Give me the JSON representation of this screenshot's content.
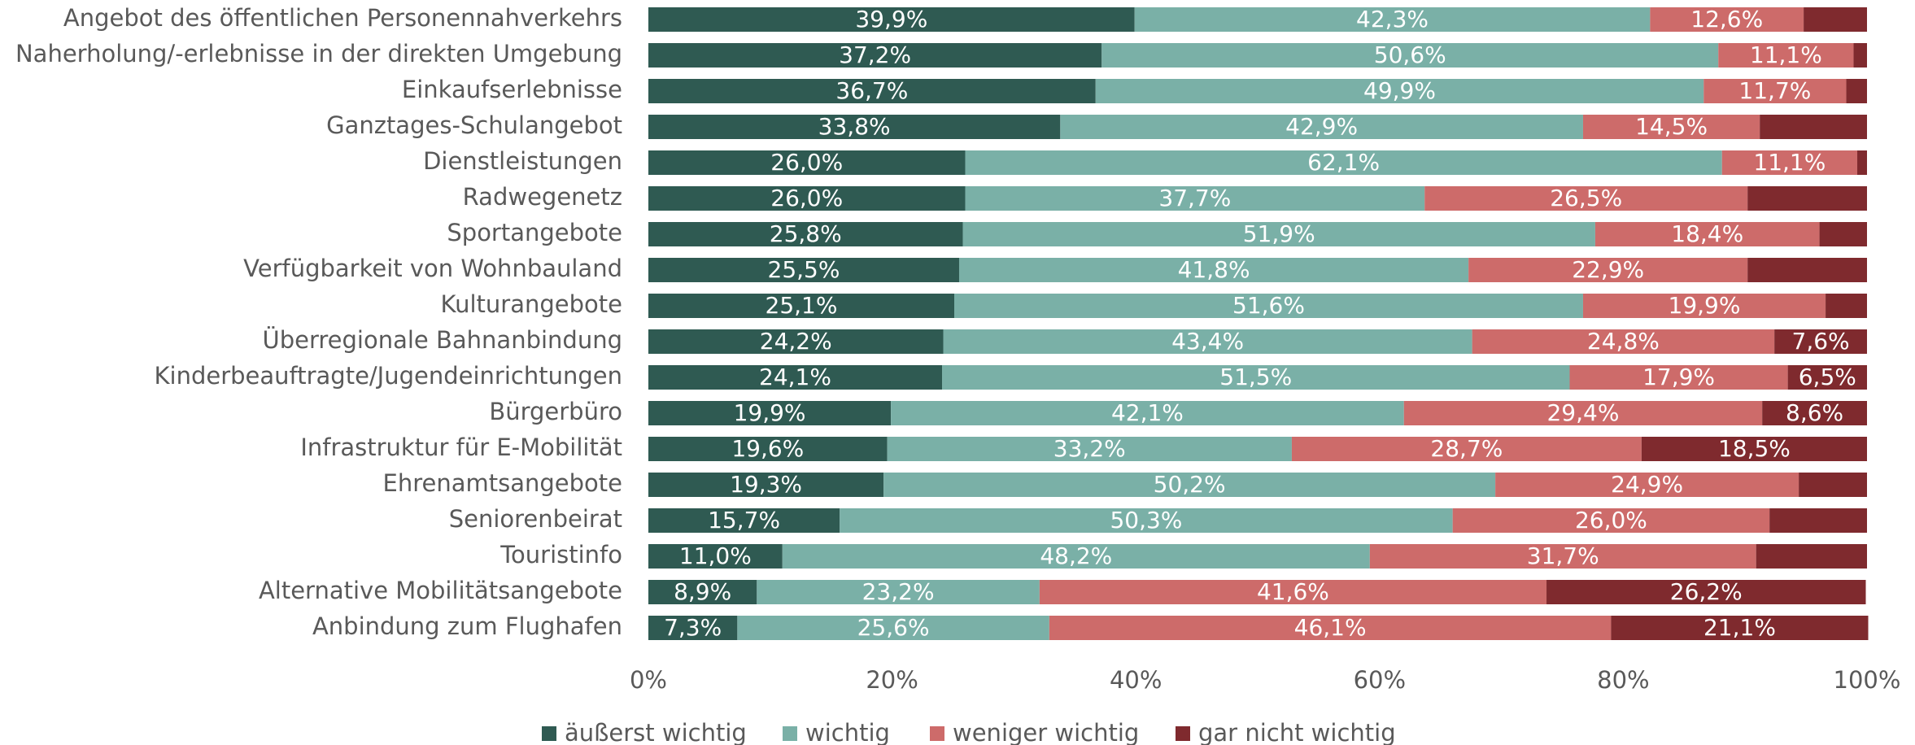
{
  "chart_data": {
    "type": "stacked_bar_horizontal",
    "categories": [
      "Angebot des öffentlichen Personennahverkehrs",
      "Naherholung/-erlebnisse in der direkten Umgebung",
      "Einkaufserlebnisse",
      "Ganztages-Schulangebot",
      "Dienstleistungen",
      "Radwegenetz",
      "Sportangebote",
      "Verfügbarkeit von Wohnbauland",
      "Kulturangebote",
      "Überregionale Bahnanbindung",
      "Kinderbeauftragte/Jugendeinrichtungen",
      "Bürgerbüro",
      "Infrastruktur für E-Mobilität",
      "Ehrenamtsangebote",
      "Seniorenbeirat",
      "Touristinfo",
      "Alternative Mobilitätsangebote",
      "Anbindung zum Flughafen"
    ],
    "series": [
      {
        "name": "äußerst wichtig",
        "color": "#2f5a52",
        "values": [
          39.9,
          37.2,
          36.7,
          33.8,
          26.0,
          26.0,
          25.8,
          25.5,
          25.1,
          24.2,
          24.1,
          19.9,
          19.6,
          19.3,
          15.7,
          11.0,
          8.9,
          7.3
        ],
        "value_labels": [
          "39,9%",
          "37,2%",
          "36,7%",
          "33,8%",
          "26,0%",
          "26,0%",
          "25,8%",
          "25,5%",
          "25,1%",
          "24,2%",
          "24,1%",
          "19,9%",
          "19,6%",
          "19,3%",
          "15,7%",
          "11,0%",
          "8,9%",
          "7,3%"
        ]
      },
      {
        "name": "wichtig",
        "color": "#7ab0a7",
        "values": [
          42.3,
          50.6,
          49.9,
          42.9,
          62.1,
          37.7,
          51.9,
          41.8,
          51.6,
          43.4,
          51.5,
          42.1,
          33.2,
          50.2,
          50.3,
          48.2,
          23.2,
          25.6
        ],
        "value_labels": [
          "42,3%",
          "50,6%",
          "49,9%",
          "42,9%",
          "62,1%",
          "37,7%",
          "51,9%",
          "41,8%",
          "51,6%",
          "43,4%",
          "51,5%",
          "42,1%",
          "33,2%",
          "50,2%",
          "50,3%",
          "48,2%",
          "23,2%",
          "25,6%"
        ]
      },
      {
        "name": "weniger wichtig",
        "color": "#cd6b6a",
        "values": [
          12.6,
          11.1,
          11.7,
          14.5,
          11.1,
          26.5,
          18.4,
          22.9,
          19.9,
          24.8,
          17.9,
          29.4,
          28.7,
          24.9,
          26.0,
          31.7,
          41.6,
          46.1
        ],
        "value_labels": [
          "12,6%",
          "11,1%",
          "11,7%",
          "14,5%",
          "11,1%",
          "26,5%",
          "18,4%",
          "22,9%",
          "19,9%",
          "24,8%",
          "17,9%",
          "29,4%",
          "28,7%",
          "24,9%",
          "26,0%",
          "31,7%",
          "41,6%",
          "46,1%"
        ]
      },
      {
        "name": "gar nicht wichtig",
        "color": "#7f2a2e",
        "values": [
          5.2,
          1.1,
          1.7,
          8.8,
          0.8,
          9.8,
          3.9,
          9.8,
          3.4,
          7.6,
          6.5,
          8.6,
          18.5,
          5.6,
          8.0,
          9.1,
          26.2,
          21.1
        ],
        "value_labels": [
          null,
          null,
          null,
          null,
          null,
          null,
          null,
          null,
          null,
          "7,6%",
          "6,5%",
          "8,6%",
          "18,5%",
          null,
          null,
          null,
          "26,2%",
          "21,1%"
        ]
      }
    ],
    "xlim": [
      0,
      100
    ],
    "xticks": [
      {
        "value": 0,
        "label": "0%"
      },
      {
        "value": 20,
        "label": "20%"
      },
      {
        "value": 40,
        "label": "40%"
      },
      {
        "value": 60,
        "label": "60%"
      },
      {
        "value": 80,
        "label": "80%"
      },
      {
        "value": 100,
        "label": "100%"
      }
    ],
    "legend": "bottom"
  }
}
